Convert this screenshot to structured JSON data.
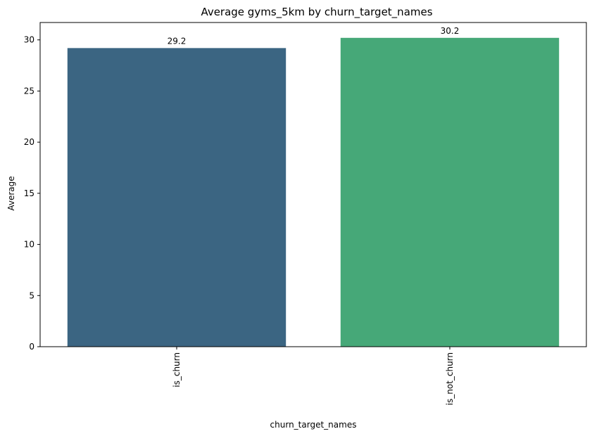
{
  "chart_data": {
    "type": "bar",
    "title": "Average gyms_5km by churn_target_names",
    "xlabel": "churn_target_names",
    "ylabel": "Average",
    "categories": [
      "is_churn",
      "is_not_churn"
    ],
    "values": [
      29.2,
      30.2
    ],
    "data_labels": [
      "29.2",
      "30.2"
    ],
    "colors": [
      "#3b6582",
      "#46a878"
    ],
    "ylim": [
      0,
      31.7
    ],
    "yticks": [
      0,
      5,
      10,
      15,
      20,
      25,
      30
    ],
    "grid": false,
    "x_tick_rotation": 90
  }
}
